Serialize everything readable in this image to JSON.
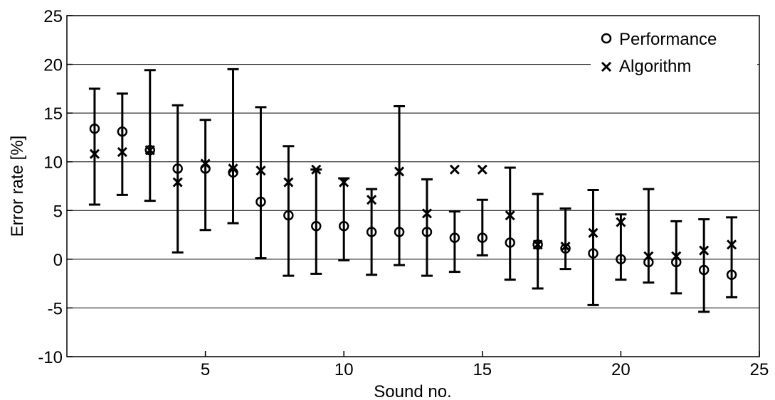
{
  "chart_data": {
    "type": "scatter",
    "xlabel": "Sound no.",
    "ylabel": "Error rate [%]",
    "xlim": [
      0,
      25
    ],
    "ylim": [
      -10,
      25
    ],
    "xticks": [
      5,
      10,
      15,
      20,
      25
    ],
    "yticks": [
      -10,
      -5,
      0,
      5,
      10,
      15,
      20,
      25
    ],
    "grid": "horizontal",
    "legend_position": "top-right",
    "x": [
      1,
      2,
      3,
      4,
      5,
      6,
      7,
      8,
      9,
      10,
      11,
      12,
      13,
      14,
      15,
      16,
      17,
      18,
      19,
      20,
      21,
      22,
      23,
      24
    ],
    "series": [
      {
        "name": "Performance",
        "marker": "circle",
        "values": [
          13.4,
          13.1,
          11.2,
          9.3,
          9.3,
          8.9,
          5.9,
          4.5,
          3.4,
          3.4,
          2.8,
          2.8,
          2.8,
          2.2,
          2.2,
          1.7,
          1.5,
          1.1,
          0.6,
          0.0,
          -0.3,
          -0.3,
          -1.1,
          -1.6
        ],
        "error_bars": {
          "low": [
            5.6,
            6.6,
            6.0,
            0.7,
            3.0,
            3.7,
            0.1,
            -1.7,
            -1.5,
            -0.1,
            -1.6,
            -0.6,
            -1.7,
            -1.3,
            0.4,
            -2.1,
            -3.0,
            -1.0,
            -4.7,
            -2.1,
            -2.4,
            -3.5,
            -5.4,
            -3.9
          ],
          "high": [
            17.5,
            17.0,
            19.4,
            15.8,
            14.3,
            19.5,
            15.6,
            11.6,
            9.2,
            8.3,
            7.2,
            15.7,
            8.2,
            4.9,
            6.1,
            9.4,
            6.7,
            5.2,
            7.1,
            4.6,
            7.2,
            3.9,
            4.1,
            4.3
          ]
        }
      },
      {
        "name": "Algorithm",
        "marker": "x",
        "values": [
          10.8,
          11.0,
          11.2,
          7.9,
          9.8,
          9.3,
          9.1,
          7.9,
          9.2,
          7.9,
          6.1,
          9.0,
          4.7,
          9.2,
          9.2,
          4.5,
          1.5,
          1.3,
          2.7,
          3.8,
          0.3,
          0.3,
          0.9,
          1.5
        ]
      }
    ]
  }
}
